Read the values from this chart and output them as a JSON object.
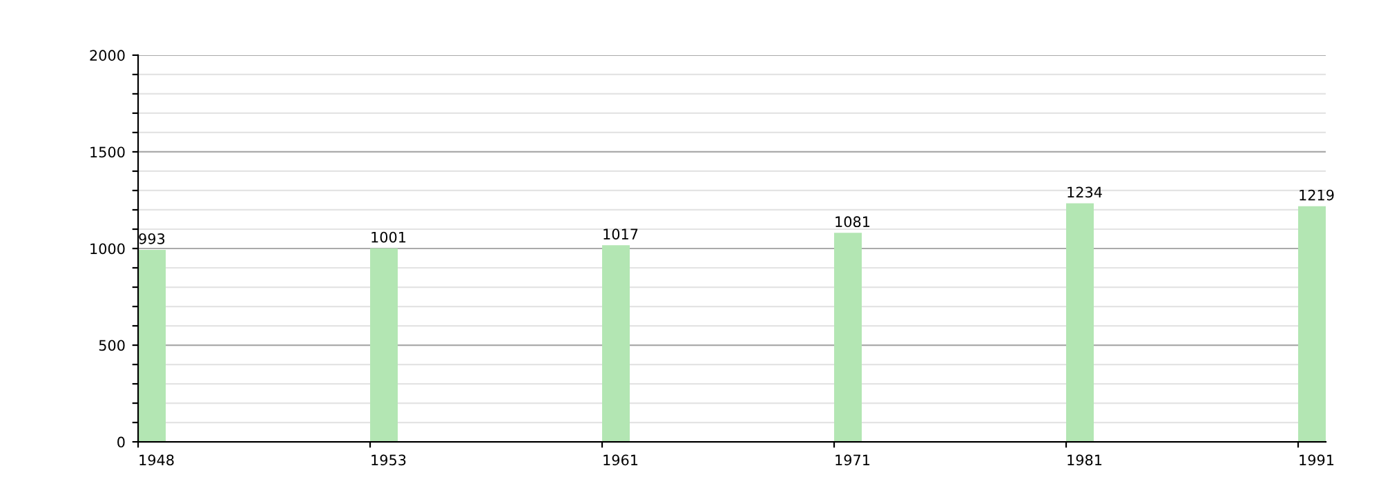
{
  "chart_data": {
    "type": "bar",
    "categories": [
      "1948",
      "1953",
      "1961",
      "1971",
      "1981",
      "1991"
    ],
    "values": [
      993,
      1001,
      1017,
      1081,
      1234,
      1219
    ],
    "color": "#b3e6b3",
    "ylim": [
      0,
      2000
    ],
    "yticks": [
      0,
      {
        "value": 100,
        "label": null
      },
      {
        "value": 200,
        "label": null
      },
      {
        "value": 300,
        "label": null
      },
      {
        "value": 400,
        "label": null
      },
      500,
      {
        "value": 600,
        "label": null
      },
      {
        "value": 700,
        "label": null
      },
      {
        "value": 800,
        "label": null
      },
      {
        "value": 900,
        "label": null
      },
      1000,
      {
        "value": 1100,
        "label": null
      },
      {
        "value": 1200,
        "label": null
      },
      {
        "value": 1300,
        "label": null
      },
      {
        "value": 1400,
        "label": null
      },
      1500,
      {
        "value": 1600,
        "label": null
      },
      {
        "value": 1700,
        "label": null
      },
      {
        "value": 1800,
        "label": null
      },
      {
        "value": 1900,
        "label": null
      },
      2000
    ],
    "grid": true,
    "data_labels": true
  }
}
